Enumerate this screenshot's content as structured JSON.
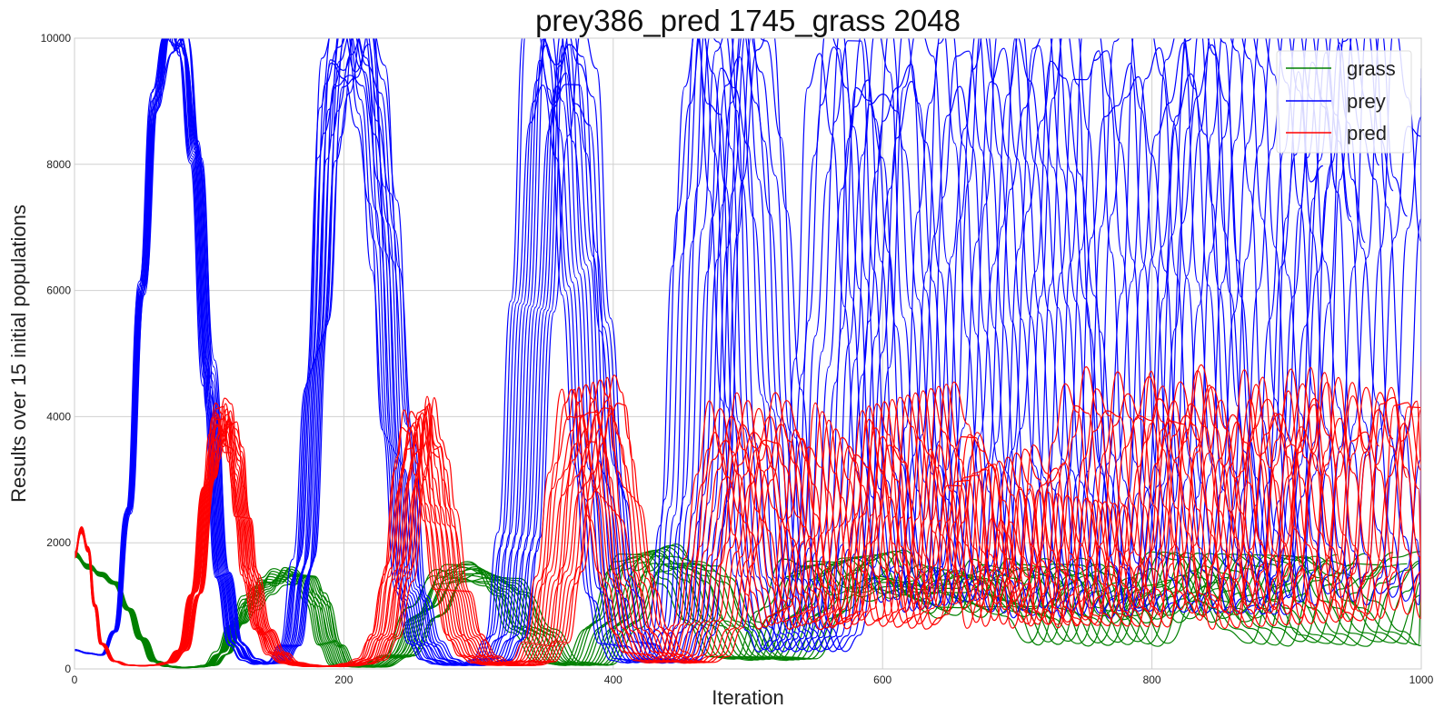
{
  "chart_data": {
    "type": "line",
    "title": "prey386_pred 1745_grass 2048",
    "xlabel": "Iteration",
    "ylabel": "Results over 15 initial populations",
    "xlim": [
      0,
      1000
    ],
    "ylim": [
      0,
      10000
    ],
    "x_ticks": [
      0,
      200,
      400,
      600,
      800,
      1000
    ],
    "y_ticks": [
      0,
      2000,
      4000,
      6000,
      8000,
      10000
    ],
    "grid": true,
    "legend": {
      "placement": "top-right",
      "entries": [
        "grass",
        "prey",
        "pred"
      ]
    },
    "runs": 15,
    "series": [
      {
        "name": "grass",
        "color": "#008000",
        "x": [
          0,
          10,
          20,
          30,
          40,
          50,
          60,
          70,
          80,
          90,
          100,
          110,
          120,
          130,
          140,
          150,
          160,
          170,
          180,
          190,
          200,
          220,
          240,
          260,
          280,
          300,
          320,
          340,
          360,
          380,
          400,
          420,
          440,
          460,
          480,
          500,
          520,
          540,
          560,
          580,
          600,
          620,
          640,
          660,
          680,
          700,
          720,
          740,
          760,
          780,
          800,
          820,
          840,
          860,
          880,
          900,
          920,
          940,
          960,
          980,
          1000
        ],
        "values": [
          1820,
          1620,
          1500,
          1350,
          950,
          480,
          120,
          40,
          20,
          30,
          60,
          250,
          700,
          1050,
          1300,
          1450,
          1480,
          1420,
          1100,
          400,
          60,
          30,
          200,
          900,
          1500,
          1550,
          1300,
          600,
          100,
          60,
          700,
          1700,
          1800,
          1500,
          700,
          200,
          150,
          900,
          1600,
          1700,
          1200,
          1300,
          1500,
          1100,
          900,
          1600,
          1500,
          900,
          400,
          1200,
          1500,
          800,
          1200,
          1700,
          1600,
          1000,
          600,
          400,
          1300,
          1600,
          1700
        ]
      },
      {
        "name": "prey",
        "color": "#0000ff",
        "x": [
          0,
          10,
          20,
          30,
          40,
          50,
          60,
          70,
          75,
          80,
          90,
          100,
          110,
          120,
          130,
          140,
          150,
          160,
          170,
          180,
          190,
          200,
          210,
          220,
          230,
          240,
          250,
          260,
          270,
          280,
          290,
          300,
          310,
          320,
          330,
          340,
          350,
          360,
          370,
          380,
          390,
          400,
          410,
          420,
          430,
          440,
          450,
          460,
          470,
          480,
          490,
          500,
          510,
          520,
          530,
          540,
          550,
          560,
          570,
          580,
          590,
          600,
          610,
          620,
          630,
          640,
          650,
          660,
          670,
          680,
          690,
          700,
          710,
          720,
          730,
          740,
          750,
          760,
          770,
          780,
          790,
          800,
          810,
          820,
          830,
          840,
          850,
          860,
          870,
          880,
          890,
          900,
          910,
          920,
          930,
          940,
          950,
          960,
          970,
          980,
          990,
          1000
        ],
        "values": [
          300,
          250,
          220,
          600,
          2500,
          6000,
          9000,
          10000,
          10000,
          9950,
          8200,
          4500,
          1500,
          400,
          150,
          80,
          100,
          400,
          1600,
          5000,
          9000,
          10000,
          10000,
          9500,
          7000,
          3500,
          1200,
          400,
          150,
          80,
          60,
          70,
          150,
          500,
          2000,
          6000,
          9500,
          10000,
          9000,
          6000,
          3000,
          1200,
          400,
          150,
          100,
          150,
          600,
          2500,
          7000,
          10000,
          10000,
          8000,
          4000,
          1500,
          600,
          300,
          500,
          1800,
          5000,
          8500,
          10000,
          9000,
          6000,
          3000,
          1500,
          1000,
          1500,
          3500,
          7000,
          9500,
          10000,
          8500,
          5500,
          3000,
          1500,
          900,
          1200,
          3000,
          6500,
          9500,
          10000,
          9000,
          6000,
          3200,
          1600,
          900,
          1100,
          2800,
          6000,
          9000,
          10000,
          9500,
          7000,
          4000,
          2000,
          1100,
          1500,
          3500,
          7000,
          9500,
          8500,
          7400
        ]
      },
      {
        "name": "pred",
        "color": "#ff0000",
        "x": [
          0,
          5,
          10,
          15,
          20,
          30,
          40,
          50,
          60,
          70,
          80,
          90,
          100,
          105,
          110,
          115,
          120,
          125,
          130,
          140,
          150,
          160,
          170,
          180,
          190,
          200,
          210,
          220,
          230,
          240,
          250,
          255,
          260,
          265,
          270,
          280,
          290,
          300,
          310,
          320,
          330,
          340,
          350,
          360,
          370,
          380,
          385,
          390,
          395,
          400,
          410,
          420,
          430,
          440,
          450,
          460,
          470,
          480,
          490,
          500,
          510,
          520,
          530,
          540,
          550,
          560,
          570,
          580,
          590,
          600,
          610,
          620,
          630,
          640,
          650,
          660,
          670,
          680,
          690,
          700,
          710,
          720,
          730,
          740,
          750,
          760,
          770,
          780,
          790,
          800,
          810,
          820,
          830,
          840,
          850,
          860,
          870,
          880,
          890,
          900,
          910,
          920,
          930,
          940,
          950,
          960,
          970,
          980,
          990,
          1000
        ],
        "values": [
          1800,
          2200,
          1900,
          1000,
          400,
          120,
          60,
          50,
          60,
          100,
          300,
          1200,
          3000,
          3700,
          3900,
          3800,
          3200,
          2300,
          1500,
          600,
          250,
          100,
          60,
          40,
          40,
          50,
          80,
          150,
          500,
          1500,
          3200,
          3900,
          3800,
          3200,
          2500,
          1300,
          500,
          200,
          100,
          60,
          60,
          120,
          400,
          1500,
          3000,
          4000,
          4200,
          4000,
          3400,
          2600,
          1400,
          600,
          250,
          120,
          100,
          200,
          700,
          1800,
          3200,
          4000,
          3400,
          2300,
          1200,
          700,
          900,
          2200,
          3800,
          3000,
          1500,
          700,
          900,
          2500,
          4100,
          3500,
          2000,
          1000,
          1500,
          3200,
          3000,
          1500,
          700,
          1200,
          2600,
          1800,
          900,
          700,
          1800,
          3600,
          4400,
          3800,
          2500,
          1300,
          900,
          1800,
          3500,
          4300,
          3400,
          2000,
          1000,
          700,
          1500,
          3400,
          4200,
          3200,
          1800,
          900,
          1500,
          3800,
          4400,
          3300
        ]
      }
    ]
  }
}
